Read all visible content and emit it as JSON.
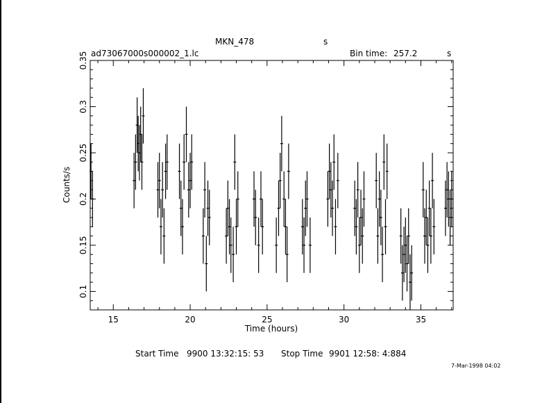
{
  "header": {
    "target": "MKN_478",
    "target_unit": "s",
    "filename": "ad73067000s000002_1.lc",
    "bin_label": "Bin time:",
    "bin_value": "257.2",
    "bin_unit": "s"
  },
  "footer": {
    "start_label": "Start Time",
    "start_value": "9900 13:32:15: 53",
    "stop_label": "Stop Time",
    "stop_value": "9901 12:58: 4:884",
    "stamp": "7-Mar-1998 04:02"
  },
  "chart_data": {
    "type": "scatter",
    "xlabel": "Time (hours)",
    "ylabel": "Counts/s",
    "xlim": [
      13.5,
      37.1
    ],
    "ylim": [
      0.08,
      0.35
    ],
    "x_ticks": [
      15,
      20,
      25,
      30,
      35
    ],
    "y_ticks": [
      0.1,
      0.15,
      0.2,
      0.25,
      0.3,
      0.35
    ],
    "y_tick_labels": [
      "0.1",
      "0.15",
      "0.2",
      "0.25",
      "0.3",
      "0.35"
    ],
    "grid": false,
    "points": [
      [
        13.55,
        0.23,
        0.03
      ],
      [
        13.65,
        0.2,
        0.03
      ],
      [
        16.35,
        0.22,
        0.03
      ],
      [
        16.45,
        0.24,
        0.03
      ],
      [
        16.55,
        0.28,
        0.03
      ],
      [
        16.62,
        0.26,
        0.03
      ],
      [
        16.7,
        0.25,
        0.03
      ],
      [
        16.78,
        0.27,
        0.03
      ],
      [
        16.86,
        0.24,
        0.03
      ],
      [
        16.95,
        0.29,
        0.03
      ],
      [
        17.9,
        0.21,
        0.03
      ],
      [
        18.0,
        0.22,
        0.03
      ],
      [
        18.1,
        0.17,
        0.03
      ],
      [
        18.2,
        0.21,
        0.03
      ],
      [
        18.3,
        0.16,
        0.03
      ],
      [
        18.4,
        0.23,
        0.03
      ],
      [
        18.5,
        0.24,
        0.03
      ],
      [
        19.3,
        0.23,
        0.03
      ],
      [
        19.4,
        0.19,
        0.03
      ],
      [
        19.5,
        0.17,
        0.03
      ],
      [
        19.6,
        0.24,
        0.03
      ],
      [
        19.75,
        0.27,
        0.03
      ],
      [
        19.9,
        0.21,
        0.03
      ],
      [
        20.0,
        0.22,
        0.03
      ],
      [
        20.1,
        0.24,
        0.03
      ],
      [
        20.85,
        0.16,
        0.03
      ],
      [
        20.95,
        0.21,
        0.03
      ],
      [
        21.05,
        0.13,
        0.03
      ],
      [
        21.15,
        0.19,
        0.03
      ],
      [
        21.25,
        0.18,
        0.03
      ],
      [
        22.35,
        0.16,
        0.03
      ],
      [
        22.45,
        0.19,
        0.03
      ],
      [
        22.55,
        0.17,
        0.03
      ],
      [
        22.65,
        0.15,
        0.03
      ],
      [
        22.8,
        0.14,
        0.03
      ],
      [
        22.9,
        0.24,
        0.03
      ],
      [
        23.0,
        0.17,
        0.03
      ],
      [
        23.1,
        0.2,
        0.03
      ],
      [
        24.15,
        0.2,
        0.03
      ],
      [
        24.25,
        0.18,
        0.03
      ],
      [
        24.45,
        0.15,
        0.03
      ],
      [
        24.6,
        0.2,
        0.03
      ],
      [
        24.7,
        0.17,
        0.03
      ],
      [
        25.6,
        0.15,
        0.03
      ],
      [
        25.75,
        0.19,
        0.03
      ],
      [
        25.85,
        0.22,
        0.03
      ],
      [
        25.95,
        0.26,
        0.03
      ],
      [
        26.1,
        0.2,
        0.03
      ],
      [
        26.2,
        0.17,
        0.03
      ],
      [
        26.3,
        0.14,
        0.03
      ],
      [
        26.4,
        0.23,
        0.03
      ],
      [
        27.3,
        0.17,
        0.03
      ],
      [
        27.4,
        0.15,
        0.03
      ],
      [
        27.5,
        0.19,
        0.03
      ],
      [
        27.6,
        0.2,
        0.03
      ],
      [
        27.8,
        0.15,
        0.03
      ],
      [
        28.95,
        0.2,
        0.03
      ],
      [
        29.05,
        0.23,
        0.03
      ],
      [
        29.15,
        0.21,
        0.03
      ],
      [
        29.25,
        0.19,
        0.03
      ],
      [
        29.35,
        0.24,
        0.03
      ],
      [
        29.45,
        0.17,
        0.03
      ],
      [
        29.6,
        0.22,
        0.03
      ],
      [
        30.7,
        0.19,
        0.03
      ],
      [
        30.8,
        0.17,
        0.03
      ],
      [
        30.9,
        0.21,
        0.03
      ],
      [
        31.0,
        0.15,
        0.03
      ],
      [
        31.1,
        0.18,
        0.03
      ],
      [
        31.2,
        0.16,
        0.03
      ],
      [
        31.3,
        0.2,
        0.03
      ],
      [
        32.1,
        0.22,
        0.03
      ],
      [
        32.2,
        0.16,
        0.03
      ],
      [
        32.3,
        0.2,
        0.03
      ],
      [
        32.4,
        0.18,
        0.03
      ],
      [
        32.5,
        0.14,
        0.03
      ],
      [
        32.6,
        0.24,
        0.03
      ],
      [
        32.7,
        0.17,
        0.03
      ],
      [
        32.8,
        0.23,
        0.03
      ],
      [
        33.7,
        0.16,
        0.03
      ],
      [
        33.8,
        0.12,
        0.03
      ],
      [
        33.9,
        0.14,
        0.03
      ],
      [
        34.0,
        0.15,
        0.03
      ],
      [
        34.1,
        0.13,
        0.03
      ],
      [
        34.2,
        0.16,
        0.03
      ],
      [
        34.3,
        0.11,
        0.03
      ],
      [
        34.4,
        0.12,
        0.03
      ],
      [
        35.15,
        0.21,
        0.03
      ],
      [
        35.25,
        0.16,
        0.03
      ],
      [
        35.35,
        0.18,
        0.03
      ],
      [
        35.45,
        0.15,
        0.03
      ],
      [
        35.55,
        0.19,
        0.03
      ],
      [
        35.65,
        0.16,
        0.03
      ],
      [
        35.75,
        0.22,
        0.03
      ],
      [
        35.85,
        0.17,
        0.03
      ],
      [
        36.6,
        0.19,
        0.03
      ],
      [
        36.7,
        0.21,
        0.03
      ],
      [
        36.8,
        0.2,
        0.03
      ],
      [
        36.9,
        0.18,
        0.03
      ],
      [
        37.0,
        0.2,
        0.03
      ]
    ]
  }
}
